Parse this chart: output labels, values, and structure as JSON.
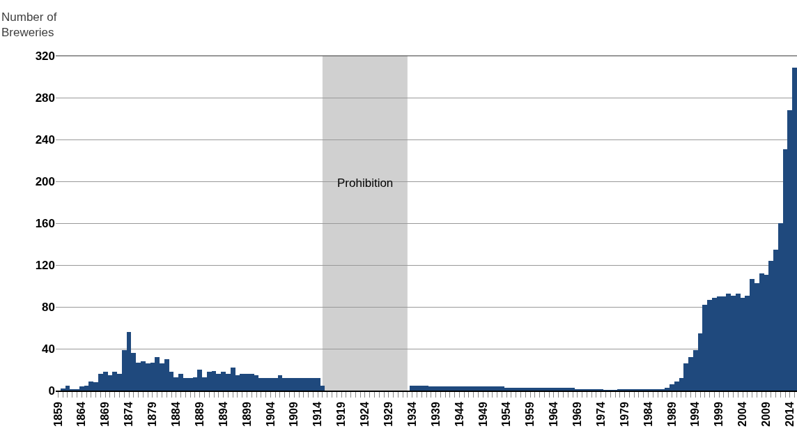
{
  "chart_data": {
    "type": "bar",
    "ylabel": "Number of\nBreweries",
    "x": [
      1859,
      1860,
      1861,
      1862,
      1863,
      1864,
      1865,
      1866,
      1867,
      1868,
      1869,
      1870,
      1871,
      1872,
      1873,
      1874,
      1875,
      1876,
      1877,
      1878,
      1879,
      1880,
      1881,
      1882,
      1883,
      1884,
      1885,
      1886,
      1887,
      1888,
      1889,
      1890,
      1891,
      1892,
      1893,
      1894,
      1895,
      1896,
      1897,
      1898,
      1899,
      1900,
      1901,
      1902,
      1903,
      1904,
      1905,
      1906,
      1907,
      1908,
      1909,
      1910,
      1911,
      1912,
      1913,
      1914,
      1915,
      1916,
      1917,
      1918,
      1919,
      1920,
      1921,
      1922,
      1923,
      1924,
      1925,
      1926,
      1927,
      1928,
      1929,
      1930,
      1931,
      1932,
      1933,
      1934,
      1935,
      1936,
      1937,
      1938,
      1939,
      1940,
      1941,
      1942,
      1943,
      1944,
      1945,
      1946,
      1947,
      1948,
      1949,
      1950,
      1951,
      1952,
      1953,
      1954,
      1955,
      1956,
      1957,
      1958,
      1959,
      1960,
      1961,
      1962,
      1963,
      1964,
      1965,
      1966,
      1967,
      1968,
      1969,
      1970,
      1971,
      1972,
      1973,
      1974,
      1975,
      1976,
      1977,
      1978,
      1979,
      1980,
      1981,
      1982,
      1983,
      1984,
      1985,
      1986,
      1987,
      1988,
      1989,
      1990,
      1991,
      1992,
      1993,
      1994,
      1995,
      1996,
      1997,
      1998,
      1999,
      2000,
      2001,
      2002,
      2003,
      2004,
      2005,
      2006,
      2007,
      2008,
      2009,
      2010,
      2011,
      2012,
      2013,
      2014,
      2015
    ],
    "values": [
      0,
      2,
      5,
      1,
      1,
      4,
      5,
      9,
      8,
      16,
      18,
      15,
      18,
      16,
      39,
      56,
      36,
      27,
      28,
      26,
      27,
      32,
      26,
      30,
      18,
      13,
      16,
      12,
      12,
      13,
      20,
      13,
      18,
      19,
      16,
      18,
      16,
      22,
      15,
      16,
      16,
      16,
      15,
      12,
      12,
      12,
      12,
      15,
      12,
      12,
      12,
      12,
      12,
      12,
      12,
      12,
      5,
      0,
      0,
      0,
      0,
      0,
      0,
      0,
      0,
      0,
      0,
      0,
      0,
      0,
      0,
      0,
      0,
      0,
      0,
      5,
      5,
      5,
      5,
      4,
      4,
      4,
      4,
      4,
      4,
      4,
      4,
      4,
      4,
      4,
      4,
      4,
      4,
      4,
      4,
      3,
      3,
      3,
      3,
      3,
      3,
      3,
      3,
      3,
      3,
      3,
      3,
      3,
      3,
      3,
      1,
      1,
      1,
      1,
      1,
      1,
      0.5,
      0.5,
      0.5,
      1,
      1,
      1,
      1,
      1,
      1,
      1,
      1,
      1,
      1,
      3,
      6,
      9,
      12,
      26,
      32,
      39,
      55,
      82,
      87,
      89,
      90,
      90,
      93,
      91,
      93,
      89,
      91,
      107,
      103,
      112,
      111,
      124,
      135,
      160,
      231,
      268,
      309
    ],
    "color": "#1f497d",
    "xlim": [
      1858.5,
      2015.5
    ],
    "xticks": [
      1859,
      1864,
      1869,
      1874,
      1879,
      1884,
      1889,
      1894,
      1899,
      1904,
      1909,
      1914,
      1919,
      1924,
      1929,
      1934,
      1939,
      1944,
      1949,
      1954,
      1959,
      1964,
      1969,
      1974,
      1979,
      1984,
      1989,
      1994,
      1999,
      2004,
      2009,
      2014
    ],
    "ylim": [
      0,
      320
    ],
    "yticks": [
      0,
      40,
      80,
      120,
      160,
      200,
      240,
      280,
      320
    ],
    "grid": "y",
    "bands": [
      {
        "axis": "x",
        "from": 1915,
        "to": 1933,
        "label": "Prohibition",
        "color": "#d0d0d0"
      }
    ]
  }
}
